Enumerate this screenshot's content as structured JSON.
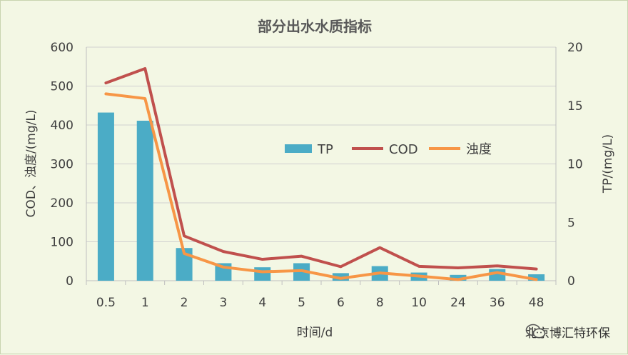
{
  "chart_data": {
    "type": "bar+line",
    "title": "部分出水水质指标",
    "xlabel": "时间/d",
    "ylabel_left": "COD、浊度/(mg/L)",
    "ylabel_right": "TP/(mg/L)",
    "categories": [
      "0.5",
      "1",
      "2",
      "3",
      "4",
      "5",
      "6",
      "8",
      "10",
      "24",
      "36",
      "48"
    ],
    "y_left_range": [
      0,
      600
    ],
    "y_left_ticks": [
      "0",
      "100",
      "200",
      "300",
      "400",
      "500",
      "600"
    ],
    "y_right_range": [
      0,
      20
    ],
    "y_right_ticks": [
      "0",
      "5",
      "10",
      "15",
      "20"
    ],
    "grid": true,
    "legend_position": "center-right",
    "series": [
      {
        "name": "TP",
        "kind": "bar",
        "axis": "right",
        "color": "#4bacc6",
        "values": [
          14.4,
          13.7,
          2.8,
          1.5,
          1.15,
          1.5,
          0.65,
          1.25,
          0.7,
          0.5,
          1.0,
          0.55
        ]
      },
      {
        "name": "COD",
        "kind": "line",
        "axis": "left",
        "color": "#c0504d",
        "values": [
          508,
          545,
          115,
          75,
          55,
          63,
          36,
          85,
          37,
          33,
          38,
          30
        ]
      },
      {
        "name": "浊度",
        "kind": "line",
        "axis": "left",
        "color": "#f79646",
        "values": [
          480,
          468,
          70,
          35,
          23,
          26,
          6,
          20,
          12,
          3,
          21,
          3
        ]
      }
    ]
  },
  "watermark": {
    "text": "北京博汇特环保",
    "icon": "wechat-icon"
  }
}
